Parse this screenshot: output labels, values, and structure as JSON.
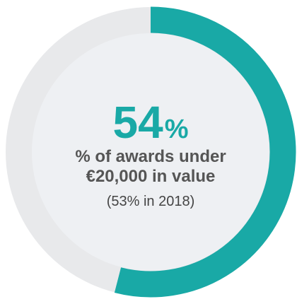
{
  "chart_data": {
    "type": "donut",
    "value": 54,
    "unit": "%",
    "range": [
      0,
      100
    ],
    "color": "#19a9a6",
    "track_color": "#e8e9eb",
    "label": "% of awards under €20,000 in value",
    "note": "(53% in 2018)"
  }
}
